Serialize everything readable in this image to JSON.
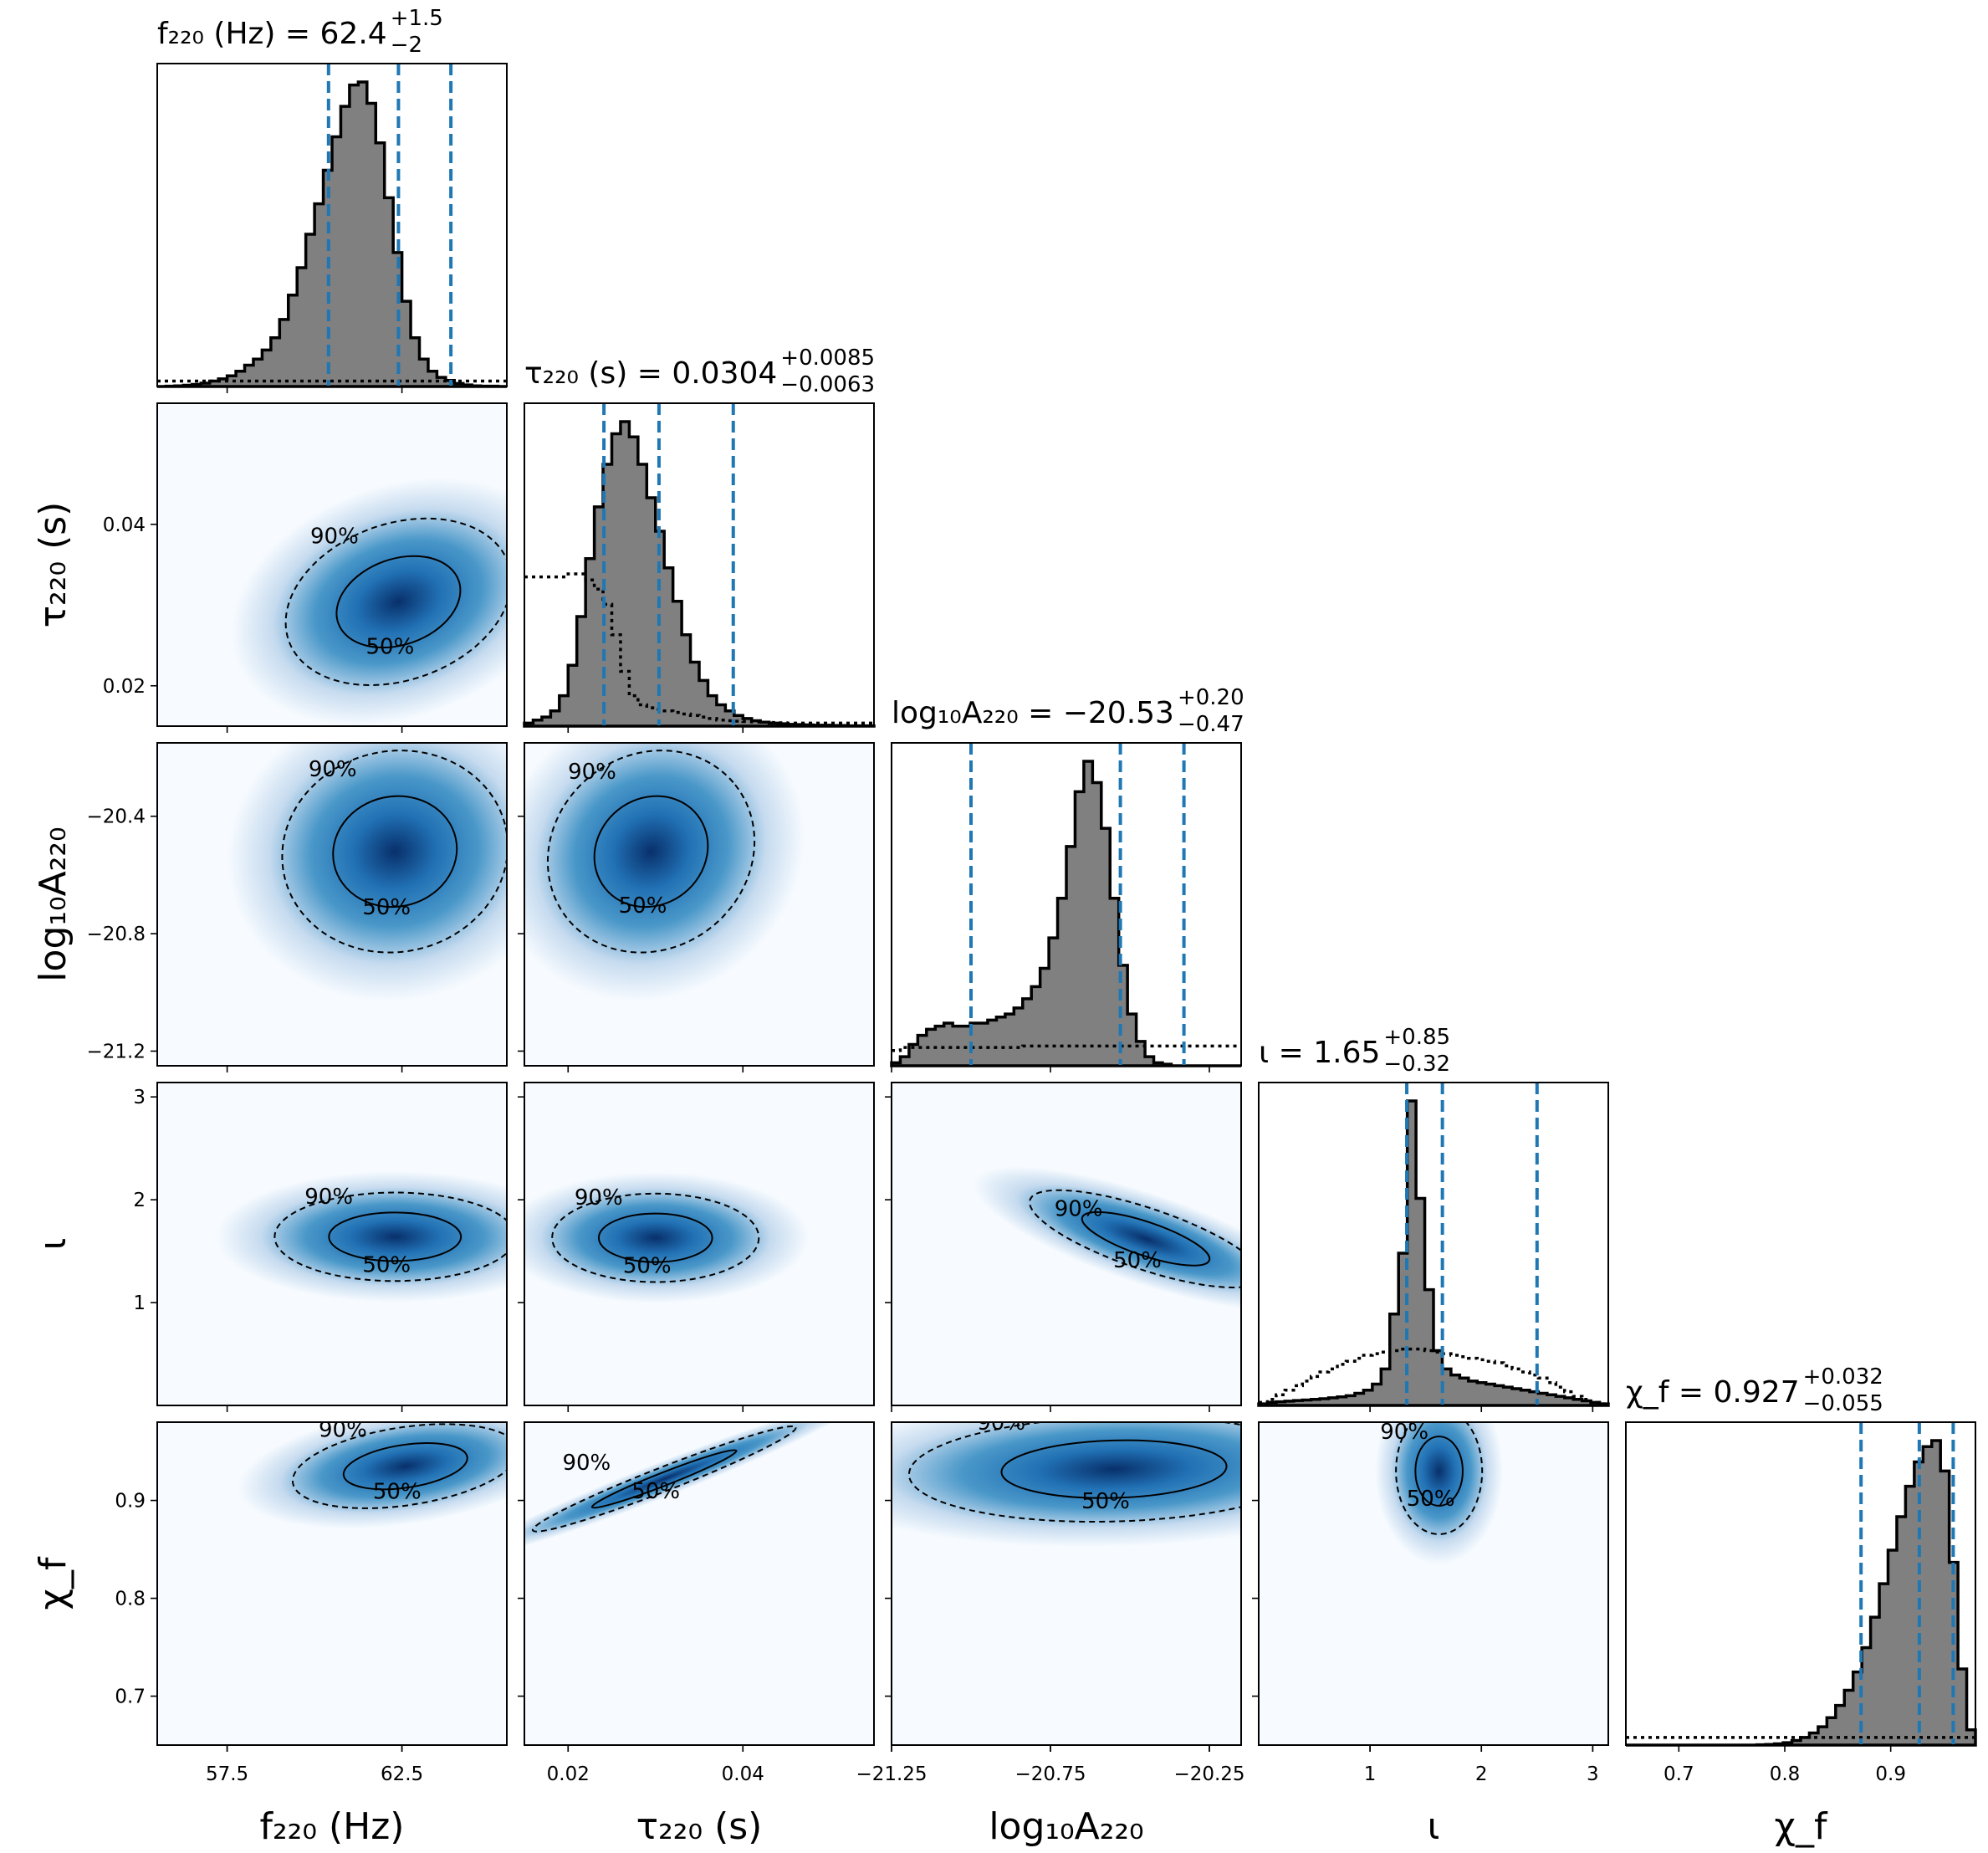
{
  "chart_data": {
    "type": "corner",
    "parameters": [
      {
        "key": "f220",
        "axis_label": "f₂₂₀ (Hz)",
        "title": {
          "prefix": "f₂₂₀ (Hz) = ",
          "median": "62.4",
          "plus": "+1.5",
          "minus": "−2"
        },
        "range": [
          55.5,
          65.5
        ],
        "ticks": [
          57.5,
          62.5
        ],
        "tick_labels": [
          "57.5",
          "62.5"
        ],
        "quantiles": [
          60.4,
          62.4,
          63.9
        ],
        "posterior_hist": [
          0,
          0.001,
          0.002,
          0.004,
          0.007,
          0.011,
          0.018,
          0.025,
          0.035,
          0.05,
          0.07,
          0.09,
          0.12,
          0.16,
          0.22,
          0.3,
          0.39,
          0.5,
          0.6,
          0.71,
          0.82,
          0.92,
          0.99,
          1.0,
          0.93,
          0.8,
          0.62,
          0.44,
          0.28,
          0.16,
          0.09,
          0.05,
          0.03,
          0.02,
          0.01,
          0.005,
          0.002,
          0.001,
          0.001,
          0
        ],
        "prior_level": 0.018
      },
      {
        "key": "tau220",
        "axis_label": "τ₂₂₀ (s)",
        "title": {
          "prefix": "τ₂₂₀ (s) = ",
          "median": "0.0304",
          "plus": "+0.0085",
          "minus": "−0.0063"
        },
        "range": [
          0.015,
          0.055
        ],
        "ticks": [
          0.02,
          0.04
        ],
        "tick_labels": [
          "0.02",
          "0.04"
        ],
        "y_tick_labels": [
          "0.02",
          "0.04"
        ],
        "quantiles": [
          0.0241,
          0.0304,
          0.0389
        ],
        "posterior_hist": [
          0.01,
          0.02,
          0.03,
          0.05,
          0.1,
          0.2,
          0.36,
          0.55,
          0.72,
          0.86,
          0.96,
          1.0,
          0.95,
          0.86,
          0.75,
          0.64,
          0.52,
          0.41,
          0.3,
          0.21,
          0.15,
          0.1,
          0.07,
          0.05,
          0.035,
          0.025,
          0.018,
          0.013,
          0.01,
          0.008,
          0.006,
          0.005,
          0.004,
          0.003,
          0.003,
          0.002,
          0.002,
          0.001,
          0.001,
          0.001
        ],
        "prior_profile": [
          0.49,
          0.49,
          0.49,
          0.49,
          0.49,
          0.5,
          0.5,
          0.48,
          0.45,
          0.4,
          0.3,
          0.18,
          0.1,
          0.07,
          0.06,
          0.055,
          0.05,
          0.045,
          0.04,
          0.035,
          0.03,
          0.025,
          0.02,
          0.018,
          0.016,
          0.015,
          0.014,
          0.013,
          0.012,
          0.011,
          0.01,
          0.01,
          0.01,
          0.01,
          0.01,
          0.01,
          0.01,
          0.01,
          0.01,
          0.01
        ]
      },
      {
        "key": "log10A220",
        "axis_label": "log₁₀A₂₂₀",
        "title": {
          "prefix": "log₁₀A₂₂₀ = ",
          "median": "−20.53",
          "plus": "+0.20",
          "minus": "−0.47"
        },
        "range": [
          -21.25,
          -20.15
        ],
        "ticks": [
          -21.25,
          -20.75,
          -20.25
        ],
        "tick_labels": [
          "−21.25",
          "−20.75",
          "−20.25"
        ],
        "y_ticks": [
          -21.2,
          -20.8,
          -20.4
        ],
        "y_tick_labels": [
          "−21.2",
          "−20.8",
          "−20.4"
        ],
        "quantiles": [
          -21.0,
          -20.53,
          -20.33
        ],
        "posterior_hist": [
          0.01,
          0.03,
          0.07,
          0.1,
          0.12,
          0.13,
          0.14,
          0.13,
          0.13,
          0.14,
          0.14,
          0.15,
          0.16,
          0.17,
          0.19,
          0.22,
          0.26,
          0.32,
          0.42,
          0.55,
          0.72,
          0.9,
          1.0,
          0.93,
          0.78,
          0.55,
          0.33,
          0.17,
          0.08,
          0.03,
          0.01,
          0.005,
          0,
          0,
          0,
          0,
          0,
          0,
          0,
          0
        ],
        "prior_profile": [
          0.05,
          0.06,
          0.06,
          0.06,
          0.06,
          0.06,
          0.06,
          0.06,
          0.06,
          0.06,
          0.06,
          0.06,
          0.06,
          0.06,
          0.06,
          0.065,
          0.065,
          0.065,
          0.065,
          0.065,
          0.065,
          0.065,
          0.065,
          0.065,
          0.065,
          0.065,
          0.065,
          0.065,
          0.065,
          0.065,
          0.065,
          0.065,
          0.065,
          0.065,
          0.065,
          0.065,
          0.065,
          0.065,
          0.065,
          0.065
        ]
      },
      {
        "key": "iota",
        "axis_label": "ι",
        "title": {
          "prefix": "ι = ",
          "median": "1.65",
          "plus": "+0.85",
          "minus": "−0.32"
        },
        "range": [
          0.0,
          3.14
        ],
        "ticks": [
          1,
          2,
          3
        ],
        "tick_labels": [
          "1",
          "2",
          "3"
        ],
        "quantiles": [
          1.33,
          1.65,
          2.5
        ],
        "posterior_hist": [
          0.005,
          0.01,
          0.012,
          0.014,
          0.016,
          0.018,
          0.02,
          0.022,
          0.025,
          0.028,
          0.032,
          0.04,
          0.05,
          0.07,
          0.12,
          0.3,
          0.5,
          1.0,
          0.68,
          0.38,
          0.18,
          0.12,
          0.1,
          0.09,
          0.08,
          0.075,
          0.07,
          0.065,
          0.06,
          0.055,
          0.05,
          0.045,
          0.04,
          0.035,
          0.03,
          0.025,
          0.02,
          0.015,
          0.01,
          0.005
        ],
        "prior_profile": [
          0.01,
          0.02,
          0.035,
          0.05,
          0.065,
          0.08,
          0.095,
          0.11,
          0.12,
          0.135,
          0.145,
          0.155,
          0.165,
          0.17,
          0.175,
          0.18,
          0.185,
          0.185,
          0.185,
          0.18,
          0.175,
          0.17,
          0.165,
          0.16,
          0.155,
          0.15,
          0.145,
          0.14,
          0.13,
          0.12,
          0.11,
          0.1,
          0.09,
          0.075,
          0.06,
          0.045,
          0.03,
          0.02,
          0.01,
          0.005
        ]
      },
      {
        "key": "chif",
        "axis_label": "χ_f",
        "title": {
          "prefix": "χ_f = ",
          "median": "0.927",
          "plus": "+0.032",
          "minus": "−0.055"
        },
        "range": [
          0.65,
          0.98
        ],
        "ticks": [
          0.7,
          0.8,
          0.9
        ],
        "tick_labels": [
          "0.7",
          "0.8",
          "0.9"
        ],
        "quantiles": [
          0.872,
          0.927,
          0.959
        ],
        "posterior_hist": [
          0,
          0,
          0,
          0,
          0,
          0,
          0,
          0,
          0,
          0,
          0,
          0,
          0,
          0,
          0,
          0.001,
          0.002,
          0.004,
          0.008,
          0.015,
          0.025,
          0.04,
          0.06,
          0.09,
          0.13,
          0.18,
          0.24,
          0.32,
          0.42,
          0.53,
          0.64,
          0.75,
          0.85,
          0.93,
          0.98,
          1.0,
          0.9,
          0.6,
          0.25,
          0.05
        ],
        "prior_level": 0.025
      }
    ],
    "pairs": [
      {
        "row": 1,
        "col": 0,
        "mode": [
          62.4,
          0.0304
        ],
        "sigma": [
          1.5,
          0.0048
        ],
        "rho": 0.25
      },
      {
        "row": 2,
        "col": 0,
        "mode": [
          62.3,
          -20.52
        ],
        "sigma": [
          1.5,
          0.16
        ],
        "rho": 0.05
      },
      {
        "row": 2,
        "col": 1,
        "mode": [
          0.0295,
          -20.52
        ],
        "sigma": [
          0.0055,
          0.16
        ],
        "rho": 0.1
      },
      {
        "row": 3,
        "col": 0,
        "mode": [
          62.3,
          1.64
        ],
        "sigma": [
          1.6,
          0.2
        ],
        "rho": 0.0
      },
      {
        "row": 3,
        "col": 1,
        "mode": [
          0.03,
          1.63
        ],
        "sigma": [
          0.0055,
          0.2
        ],
        "rho": 0.0
      },
      {
        "row": 3,
        "col": 2,
        "mode": [
          -20.45,
          1.62
        ],
        "sigma": [
          0.17,
          0.22
        ],
        "rho": -0.75
      },
      {
        "row": 4,
        "col": 0,
        "mode": [
          62.6,
          0.935
        ],
        "sigma": [
          1.5,
          0.02
        ],
        "rho": 0.35
      },
      {
        "row": 4,
        "col": 1,
        "mode": [
          0.031,
          0.922
        ],
        "sigma": [
          0.007,
          0.025
        ],
        "rho": 0.97
      },
      {
        "row": 4,
        "col": 2,
        "mode": [
          -20.55,
          0.932
        ],
        "sigma": [
          0.3,
          0.025
        ],
        "rho": 0.1
      },
      {
        "row": 4,
        "col": 3,
        "mode": [
          1.62,
          0.93
        ],
        "sigma": [
          0.18,
          0.03
        ],
        "rho": 0.0
      }
    ],
    "contour_labels": [
      "50%",
      "90%"
    ],
    "colors": {
      "hist_fill": "#808080",
      "hist_edge": "#000000",
      "quantile_line": "#1f77b4",
      "density_high": "#08306b",
      "density_mid": "#4a98c9",
      "density_low": "#f7fbff"
    },
    "grid": false,
    "legend": "none"
  }
}
